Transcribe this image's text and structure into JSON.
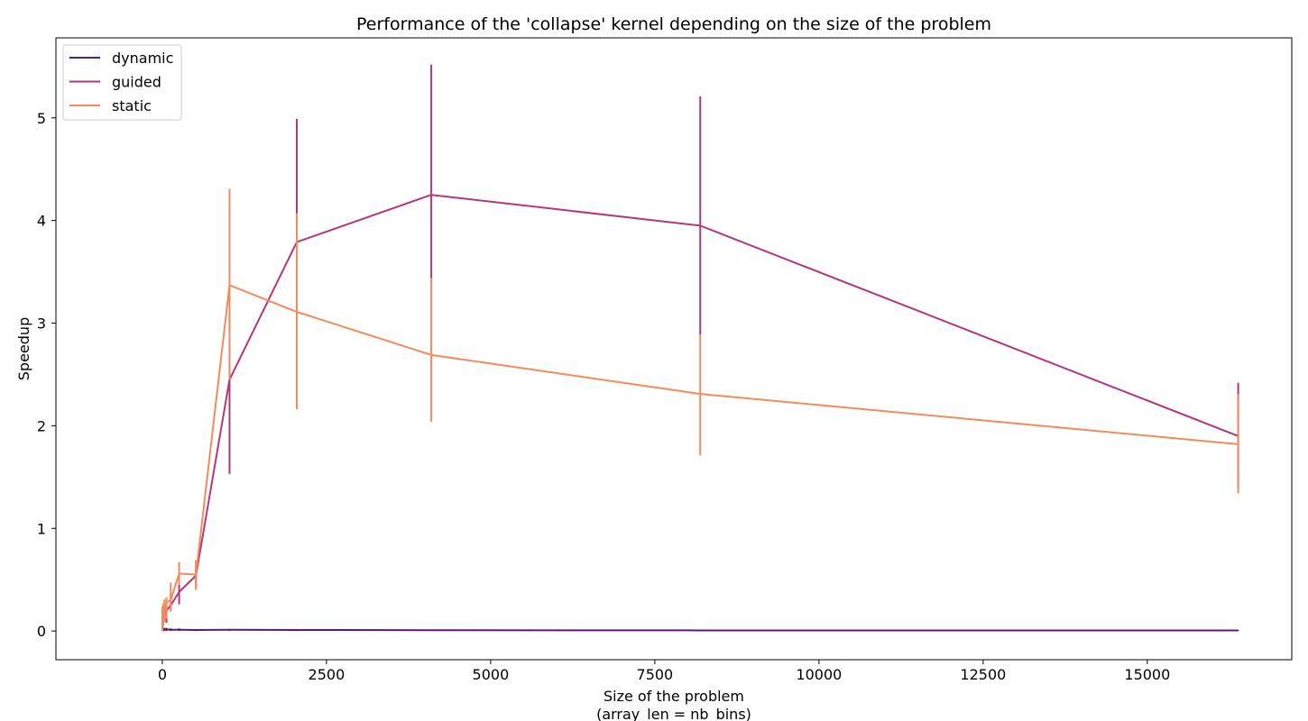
{
  "chart_data": {
    "type": "line",
    "title": "Performance of the 'collapse' kernel depending on the size of the problem",
    "xlabel": "Size of the problem",
    "xlabel2": "(array_len = nb_bins)",
    "ylabel": "Speedup",
    "xlim": [
      -1620,
      17200
    ],
    "ylim": [
      -0.28,
      5.78
    ],
    "xticks": [
      0,
      2500,
      5000,
      7500,
      10000,
      12500,
      15000
    ],
    "xtick_labels": [
      "0",
      "2500",
      "5000",
      "7500",
      "10000",
      "12500",
      "15000"
    ],
    "yticks": [
      0,
      1,
      2,
      3,
      4,
      5
    ],
    "ytick_labels": [
      "0",
      "1",
      "2",
      "3",
      "4",
      "5"
    ],
    "grid": false,
    "legend_position": "upper-left",
    "x": [
      2,
      4,
      8,
      16,
      32,
      64,
      128,
      256,
      512,
      1024,
      2048,
      4096,
      8192,
      16384
    ],
    "series": [
      {
        "name": "dynamic",
        "color": "#5c1a78",
        "values": [
          0.02,
          0.02,
          0.02,
          0.02,
          0.02,
          0.015,
          0.012,
          0.012,
          0.01,
          0.012,
          0.01,
          0.008,
          0.006,
          0.005
        ],
        "err_low": [
          0.0,
          0.0,
          0.0,
          0.0,
          0.0,
          0.0,
          0.0,
          0.0,
          0.0,
          0.0,
          0.0,
          0.0,
          0.0,
          0.0
        ],
        "err_high": [
          0.03,
          0.03,
          0.03,
          0.03,
          0.03,
          0.03,
          0.025,
          0.025,
          0.015,
          0.015,
          0.01,
          0.01,
          0.008,
          0.008
        ]
      },
      {
        "name": "guided",
        "color": "#b5367a",
        "values": [
          0.03,
          0.06,
          0.1,
          0.14,
          0.16,
          0.2,
          0.25,
          0.38,
          0.54,
          2.45,
          3.79,
          4.25,
          3.95,
          1.9
        ],
        "err_low": [
          0.0,
          0.02,
          0.04,
          0.06,
          0.1,
          0.08,
          0.2,
          0.26,
          0.42,
          1.53,
          2.97,
          3.43,
          2.89,
          1.38
        ],
        "err_high": [
          0.1,
          0.24,
          0.2,
          0.22,
          0.25,
          0.25,
          0.37,
          0.45,
          0.69,
          3.37,
          4.99,
          5.52,
          5.21,
          2.42
        ]
      },
      {
        "name": "static",
        "color": "#f58a5a",
        "values": [
          0.05,
          0.08,
          0.12,
          0.16,
          0.2,
          0.28,
          0.3,
          0.56,
          0.55,
          3.37,
          3.11,
          2.69,
          2.31,
          1.82
        ],
        "err_low": [
          0.0,
          0.0,
          0.02,
          0.05,
          0.09,
          0.12,
          0.19,
          0.45,
          0.4,
          2.45,
          2.16,
          2.04,
          1.71,
          1.34
        ],
        "err_high": [
          0.15,
          0.21,
          0.24,
          0.27,
          0.31,
          0.33,
          0.47,
          0.67,
          0.69,
          4.31,
          4.07,
          3.44,
          2.89,
          2.31
        ]
      }
    ]
  }
}
